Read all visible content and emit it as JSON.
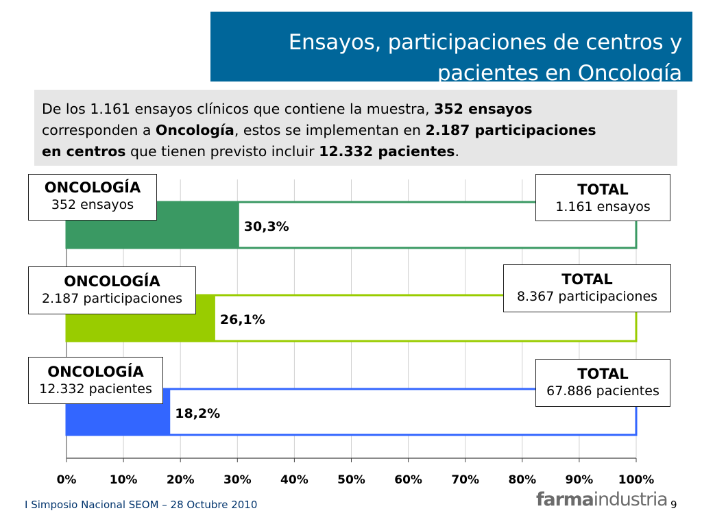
{
  "title": {
    "line1": "Ensayos, participaciones de centros y",
    "line2": "pacientes en Oncología"
  },
  "summary": {
    "l1": [
      "De los 1.161 ensayos clínicos que contiene la muestra, ",
      "352 ensayos"
    ],
    "l2": [
      "corresponden a ",
      "Oncología",
      ", estos se implementan en ",
      "2.187 participaciones"
    ],
    "l3": [
      "en centros",
      " que tienen previsto incluir ",
      "12.332 pacientes",
      "."
    ]
  },
  "chart_data": {
    "type": "bar",
    "orientation": "horizontal",
    "categories": [
      "ensayos",
      "participaciones",
      "pacientes"
    ],
    "values": [
      30.3,
      26.1,
      18.2
    ],
    "value_labels": [
      "30,3%",
      "26,1%",
      "18,2%"
    ],
    "xlim": [
      0,
      100
    ],
    "x_ticks": [
      "0%",
      "10%",
      "20%",
      "30%",
      "40%",
      "50%",
      "60%",
      "70%",
      "80%",
      "90%",
      "100%"
    ],
    "grid": true,
    "colors": [
      "#3a9963",
      "#99cc00",
      "#3366ff"
    ],
    "callouts": [
      {
        "oncologia_title": "ONCOLOGÍA",
        "oncologia_value": "352 ensayos",
        "total_title": "TOTAL",
        "total_value": "1.161 ensayos"
      },
      {
        "oncologia_title": "ONCOLOGÍA",
        "oncologia_value": "2.187 participaciones",
        "total_title": "TOTAL",
        "total_value": "8.367 participaciones"
      },
      {
        "oncologia_title": "ONCOLOGÍA",
        "oncologia_value": "12.332 pacientes",
        "total_title": "TOTAL",
        "total_value": "67.886 pacientes"
      }
    ]
  },
  "footer": {
    "event": "I Simposio Nacional SEOM – 28 Octubre 2010",
    "page": "9",
    "logo_bold": "farma",
    "logo_light": "industria"
  }
}
